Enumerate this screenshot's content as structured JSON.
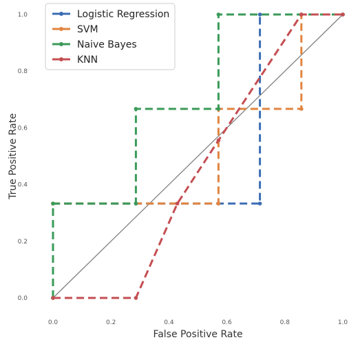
{
  "chart_data": {
    "type": "line",
    "title": "",
    "xlabel": "False Positive Rate",
    "ylabel": "True Positive Rate",
    "xlim": [
      0.0,
      1.0
    ],
    "ylim": [
      0.0,
      1.0
    ],
    "x_ticks": [
      "0.0",
      "0.2",
      "0.4",
      "0.6",
      "0.8",
      "1.0"
    ],
    "y_ticks": [
      "0.0",
      "0.2",
      "0.4",
      "0.6",
      "0.8",
      "1.0"
    ],
    "grid": false,
    "legend_position": "top-left",
    "series": [
      {
        "name": "Logistic Regression",
        "color": "#3b6db3",
        "line_style": "dashed",
        "marker": "circle",
        "x": [
          0.0,
          0.0,
          0.286,
          0.571,
          0.714,
          0.714,
          0.857,
          1.0
        ],
        "y": [
          0.0,
          0.333,
          0.333,
          0.333,
          0.333,
          1.0,
          1.0,
          1.0
        ]
      },
      {
        "name": "SVM",
        "color": "#e1843f",
        "line_style": "dashed",
        "marker": "circle",
        "x": [
          0.0,
          0.0,
          0.571,
          0.571,
          0.857,
          0.857,
          1.0
        ],
        "y": [
          0.0,
          0.333,
          0.333,
          0.667,
          0.667,
          1.0,
          1.0
        ]
      },
      {
        "name": "Naive Bayes",
        "color": "#3a9a58",
        "line_style": "dashed",
        "marker": "circle",
        "x": [
          0.0,
          0.0,
          0.286,
          0.286,
          0.571,
          0.571,
          1.0
        ],
        "y": [
          0.0,
          0.333,
          0.333,
          0.667,
          0.667,
          1.0,
          1.0
        ]
      },
      {
        "name": "KNN",
        "color": "#c44e52",
        "line_style": "dashed",
        "marker": "circle",
        "x": [
          0.0,
          0.286,
          0.429,
          0.571,
          0.857,
          1.0
        ],
        "y": [
          0.0,
          0.0,
          0.333,
          0.556,
          1.0,
          1.0
        ]
      }
    ],
    "reference_line": {
      "x": [
        0.0,
        1.0
      ],
      "y": [
        0.0,
        1.0
      ],
      "color": "#808080"
    }
  }
}
